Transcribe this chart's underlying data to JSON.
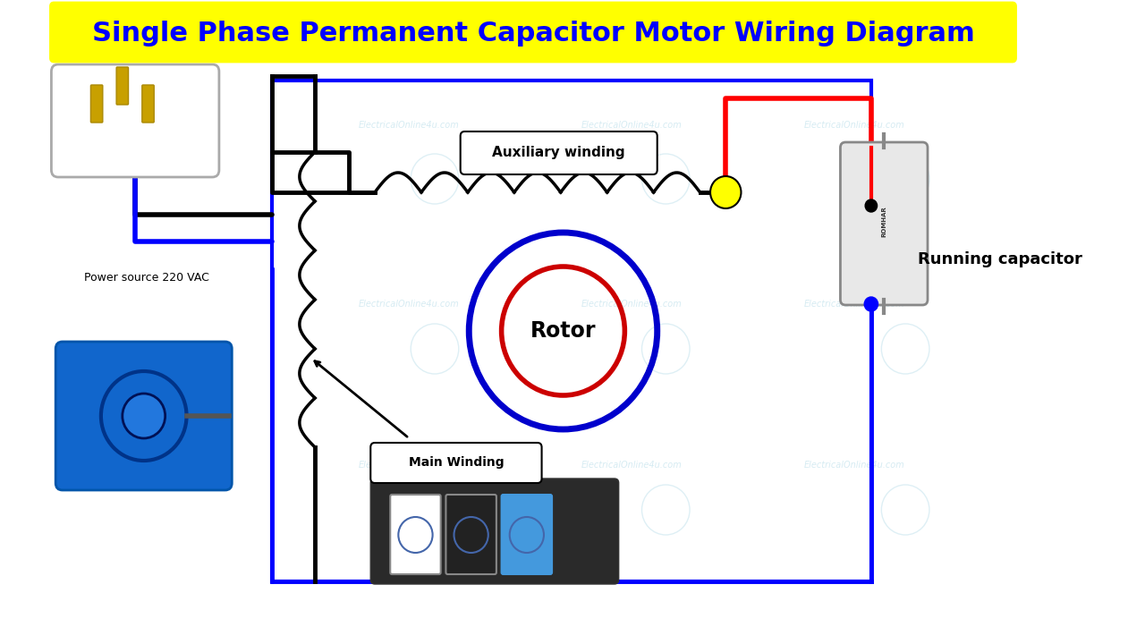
{
  "title": "Single Phase Permanent Capacitor Motor Wiring Diagram",
  "title_color": "#0000FF",
  "title_fontsize": 22,
  "bg_color": "#FFFFFF",
  "title_box_color": "#FFFF00",
  "watermark": "ElectricalOnline4u.com",
  "watermark_color": "#ADD8E6",
  "power_source_label": "Power source 220 VAC",
  "auxiliary_label": "Auxiliary winding",
  "main_winding_label": "Main Winding",
  "rotor_label": "Rotor",
  "running_cap_label": "Running capacitor",
  "rotor_outer_color": "#0000CC",
  "rotor_inner_color": "#CC0000",
  "wire_black": "#000000",
  "wire_blue": "#0000FF",
  "wire_red": "#FF0000",
  "diagram_bg": "#F0F8FF"
}
